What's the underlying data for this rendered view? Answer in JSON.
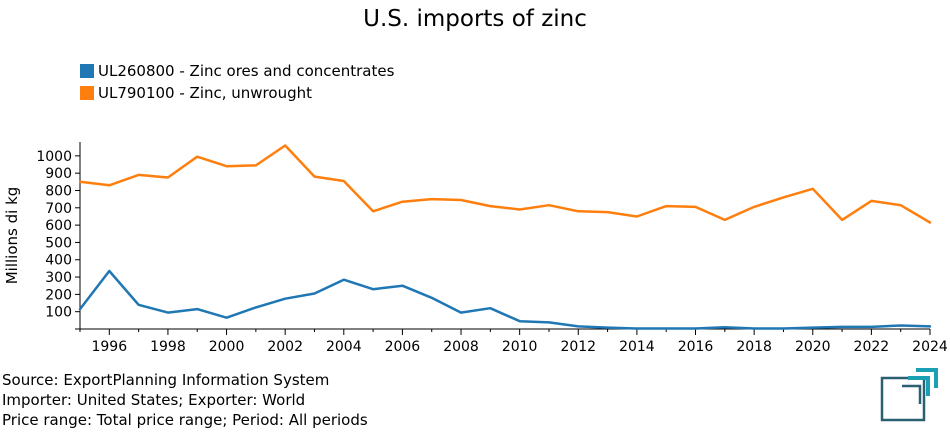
{
  "chart_data": {
    "type": "line",
    "title": "U.S. imports of zinc",
    "ylabel": "Millions di kg",
    "xlabel": "",
    "xlim": [
      1995,
      2024
    ],
    "ylim": [
      0,
      1080
    ],
    "x_ticks": [
      1996,
      1998,
      2000,
      2002,
      2004,
      2006,
      2008,
      2010,
      2012,
      2014,
      2016,
      2018,
      2020,
      2022,
      2024
    ],
    "y_ticks": [
      100,
      200,
      300,
      400,
      500,
      600,
      700,
      800,
      900,
      1000
    ],
    "grid": false,
    "legend_position": "top-left",
    "x": [
      1995,
      1996,
      1997,
      1998,
      1999,
      2000,
      2001,
      2002,
      2003,
      2004,
      2005,
      2006,
      2007,
      2008,
      2009,
      2010,
      2011,
      2012,
      2013,
      2014,
      2015,
      2016,
      2017,
      2018,
      2019,
      2020,
      2021,
      2022,
      2023,
      2024
    ],
    "series": [
      {
        "name": "UL260800 - Zinc ores and concentrates",
        "color": "#1f77b4",
        "values": [
          115,
          335,
          140,
          95,
          115,
          65,
          125,
          175,
          205,
          285,
          230,
          250,
          180,
          95,
          120,
          45,
          38,
          15,
          8,
          3,
          3,
          3,
          10,
          3,
          3,
          8,
          12,
          12,
          20,
          15
        ]
      },
      {
        "name": "UL790100 - Zinc, unwrought",
        "color": "#ff7f0e",
        "values": [
          850,
          830,
          890,
          875,
          995,
          940,
          945,
          1060,
          880,
          855,
          680,
          735,
          750,
          745,
          710,
          690,
          715,
          680,
          675,
          650,
          710,
          705,
          630,
          705,
          760,
          810,
          630,
          740,
          715,
          615
        ]
      }
    ]
  },
  "footer": {
    "source": "Source: ExportPlanning Information System",
    "importer": "Importer: United States; Exporter: World",
    "price": "Price range: Total price range; Period: All periods"
  }
}
